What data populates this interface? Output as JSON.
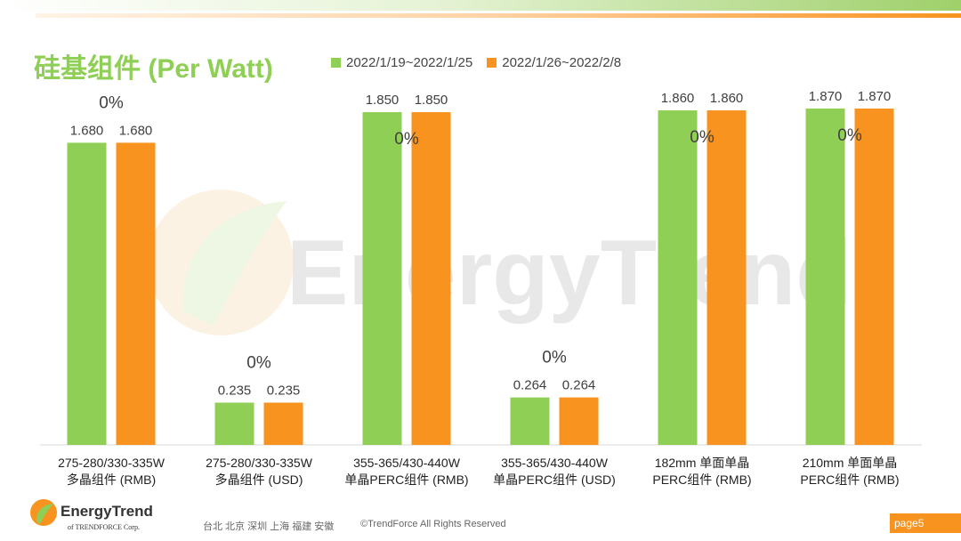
{
  "title": "硅基组件 (Per Watt)",
  "colors": {
    "series1": "#8fcf55",
    "series2": "#f7931e",
    "title": "#8fcf55"
  },
  "legend": [
    "2022/1/19~2022/1/25",
    "2022/1/26~2022/2/8"
  ],
  "watermark": "EnergyTrend",
  "chart_data": {
    "type": "bar",
    "categories": [
      [
        "275-280/330-335W",
        "多晶组件 (RMB)"
      ],
      [
        "275-280/330-335W",
        "多晶组件 (USD)"
      ],
      [
        "355-365/430-440W",
        "单晶PERC组件 (RMB)"
      ],
      [
        "355-365/430-440W",
        "单晶PERC组件 (USD)"
      ],
      [
        "182mm 单面单晶",
        "PERC组件 (RMB)"
      ],
      [
        "210mm 单面单晶",
        "PERC组件 (RMB)"
      ]
    ],
    "series": [
      {
        "name": "2022/1/19~2022/1/25",
        "values": [
          1.68,
          0.235,
          1.85,
          0.264,
          1.86,
          1.87
        ],
        "labels": [
          "1.680",
          "0.235",
          "1.850",
          "0.264",
          "1.860",
          "1.870"
        ]
      },
      {
        "name": "2022/1/26~2022/2/8",
        "values": [
          1.68,
          0.235,
          1.85,
          0.264,
          1.86,
          1.87
        ],
        "labels": [
          "1.680",
          "0.235",
          "1.850",
          "0.264",
          "1.860",
          "1.870"
        ]
      }
    ],
    "change_labels": [
      "0%",
      "0%",
      "0%",
      "0%",
      "0%",
      "0%"
    ],
    "legend_position": "top",
    "grid": false
  },
  "footer": {
    "brand": "EnergyTrend",
    "brand_sub": "of TRENDFORCE Corp.",
    "cities": "台北  北京  深圳  上海  福建  安徽",
    "copyright": "©TrendForce All Rights Reserved",
    "page": "page5"
  }
}
